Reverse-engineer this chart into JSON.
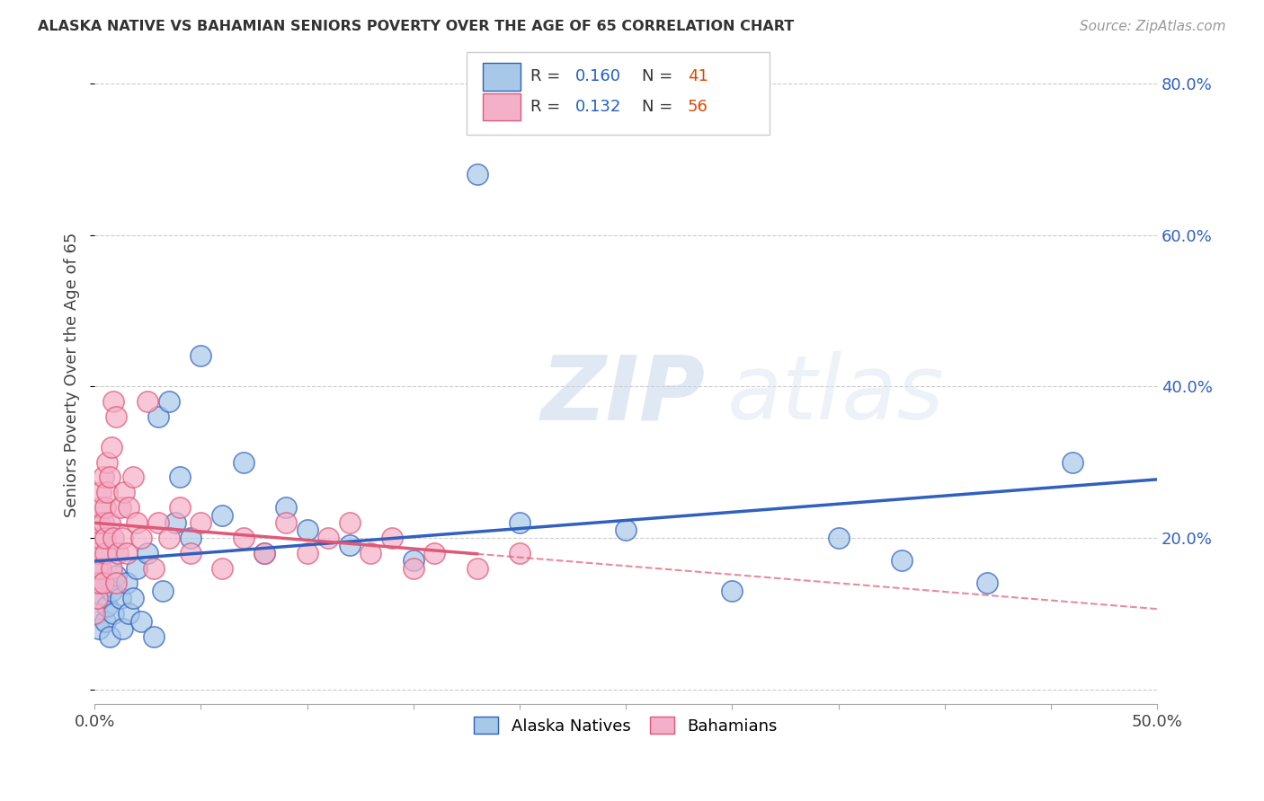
{
  "title": "ALASKA NATIVE VS BAHAMIAN SENIORS POVERTY OVER THE AGE OF 65 CORRELATION CHART",
  "source": "Source: ZipAtlas.com",
  "ylabel": "Seniors Poverty Over the Age of 65",
  "xlim": [
    0.0,
    0.5
  ],
  "ylim": [
    -0.02,
    0.85
  ],
  "yticks": [
    0.0,
    0.2,
    0.4,
    0.6,
    0.8
  ],
  "ytick_labels": [
    "",
    "20.0%",
    "40.0%",
    "60.0%",
    "80.0%"
  ],
  "xticks": [
    0.0,
    0.05,
    0.1,
    0.15,
    0.2,
    0.25,
    0.3,
    0.35,
    0.4,
    0.45,
    0.5
  ],
  "xtick_labels": [
    "0.0%",
    "",
    "",
    "",
    "",
    "",
    "",
    "",
    "",
    "",
    "50.0%"
  ],
  "alaska_color": "#a8c8e8",
  "bahamian_color": "#f4b0c8",
  "alaska_line_color": "#3060c0",
  "bahamian_line_color": "#e05878",
  "r_alaska": 0.16,
  "n_alaska": 41,
  "r_bahamian": 0.132,
  "n_bahamian": 56,
  "legend_r_color": "#2060c8",
  "legend_n_color": "#e04800",
  "background_color": "#ffffff",
  "grid_color": "#cccccc",
  "alaska_x": [
    0.001,
    0.002,
    0.003,
    0.004,
    0.005,
    0.006,
    0.007,
    0.008,
    0.009,
    0.01,
    0.012,
    0.013,
    0.015,
    0.016,
    0.018,
    0.02,
    0.022,
    0.025,
    0.028,
    0.03,
    0.032,
    0.035,
    0.038,
    0.04,
    0.045,
    0.05,
    0.06,
    0.07,
    0.08,
    0.09,
    0.1,
    0.12,
    0.15,
    0.18,
    0.2,
    0.25,
    0.3,
    0.35,
    0.38,
    0.42,
    0.46
  ],
  "alaska_y": [
    0.1,
    0.08,
    0.12,
    0.14,
    0.09,
    0.11,
    0.07,
    0.13,
    0.1,
    0.15,
    0.12,
    0.08,
    0.14,
    0.1,
    0.12,
    0.16,
    0.09,
    0.18,
    0.07,
    0.36,
    0.13,
    0.38,
    0.22,
    0.28,
    0.2,
    0.44,
    0.23,
    0.3,
    0.18,
    0.24,
    0.21,
    0.19,
    0.17,
    0.68,
    0.22,
    0.21,
    0.13,
    0.2,
    0.17,
    0.14,
    0.3
  ],
  "bahamian_x": [
    0.0,
    0.0,
    0.001,
    0.001,
    0.001,
    0.002,
    0.002,
    0.002,
    0.003,
    0.003,
    0.003,
    0.004,
    0.004,
    0.004,
    0.005,
    0.005,
    0.005,
    0.006,
    0.006,
    0.007,
    0.007,
    0.008,
    0.008,
    0.009,
    0.009,
    0.01,
    0.01,
    0.011,
    0.012,
    0.013,
    0.014,
    0.015,
    0.016,
    0.018,
    0.02,
    0.022,
    0.025,
    0.028,
    0.03,
    0.035,
    0.04,
    0.045,
    0.05,
    0.06,
    0.07,
    0.08,
    0.09,
    0.1,
    0.11,
    0.12,
    0.13,
    0.14,
    0.15,
    0.16,
    0.18,
    0.2
  ],
  "bahamian_y": [
    0.14,
    0.1,
    0.16,
    0.12,
    0.18,
    0.14,
    0.2,
    0.22,
    0.16,
    0.24,
    0.26,
    0.14,
    0.22,
    0.28,
    0.18,
    0.24,
    0.2,
    0.26,
    0.3,
    0.22,
    0.28,
    0.16,
    0.32,
    0.2,
    0.38,
    0.14,
    0.36,
    0.18,
    0.24,
    0.2,
    0.26,
    0.18,
    0.24,
    0.28,
    0.22,
    0.2,
    0.38,
    0.16,
    0.22,
    0.2,
    0.24,
    0.18,
    0.22,
    0.16,
    0.2,
    0.18,
    0.22,
    0.18,
    0.2,
    0.22,
    0.18,
    0.2,
    0.16,
    0.18,
    0.16,
    0.18
  ],
  "watermark_zip": "ZIP",
  "watermark_atlas": "atlas",
  "figsize": [
    14.06,
    8.92
  ],
  "dpi": 100
}
